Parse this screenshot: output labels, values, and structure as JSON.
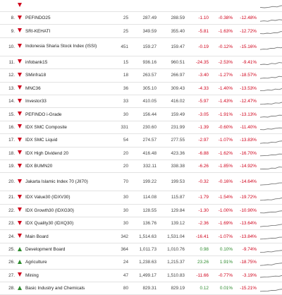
{
  "colors": {
    "negative": "#d0021b",
    "positive": "#2e8b2e",
    "sparkline": "#777777"
  },
  "rows": [
    {
      "index": "",
      "direction": "down",
      "name": "",
      "constituents": "",
      "prev": "",
      "last": "",
      "change": "",
      "change_pct": "",
      "ytd": "",
      "trend": [
        0.7,
        0.75,
        0.7,
        0.6,
        0.65,
        0.5,
        0.55,
        0.45,
        0.4,
        0.3
      ]
    },
    {
      "index": "8.",
      "direction": "down",
      "name": "PEFINDO25",
      "constituents": "25",
      "prev": "287.49",
      "last": "288.59",
      "change": "-1.10",
      "change_pct": "-0.38%",
      "ytd": "-12.48%",
      "trend": [
        0.85,
        0.8,
        0.85,
        0.7,
        0.75,
        0.65,
        0.7,
        0.4,
        0.5,
        0.2,
        0.35
      ]
    },
    {
      "index": "9.",
      "direction": "down",
      "name": "SRI-KEHATI",
      "constituents": "25",
      "prev": "349.59",
      "last": "355.40",
      "change": "-5.81",
      "change_pct": "-1.63%",
      "ytd": "-12.72%",
      "trend": [
        0.8,
        0.82,
        0.75,
        0.78,
        0.7,
        0.72,
        0.55,
        0.6,
        0.35,
        0.4,
        0.2,
        0.45
      ]
    },
    {
      "index": "10.",
      "direction": "down",
      "name": "Indonesia Sharia Stock Index (ISSI)",
      "constituents": "451",
      "prev": "159.27",
      "last": "159.47",
      "change": "-0.19",
      "change_pct": "-0.12%",
      "ytd": "-15.16%",
      "trend": [
        0.85,
        0.8,
        0.82,
        0.7,
        0.72,
        0.6,
        0.65,
        0.5,
        0.45,
        0.3,
        0.35,
        0.2
      ]
    },
    {
      "index": "11.",
      "direction": "down",
      "name": "infobank15",
      "constituents": "15",
      "prev": "936.16",
      "last": "960.51",
      "change": "-24.35",
      "change_pct": "-2.53%",
      "ytd": "-9.41%",
      "trend": [
        0.8,
        0.75,
        0.8,
        0.65,
        0.7,
        0.55,
        0.6,
        0.4,
        0.45,
        0.2,
        0.3
      ]
    },
    {
      "index": "12.",
      "direction": "down",
      "name": "SMinfra18",
      "constituents": "18",
      "prev": "263.57",
      "last": "266.97",
      "change": "-3.40",
      "change_pct": "-1.27%",
      "ytd": "-18.57%",
      "trend": [
        0.85,
        0.8,
        0.82,
        0.72,
        0.75,
        0.6,
        0.65,
        0.5,
        0.4,
        0.45,
        0.25
      ]
    },
    {
      "index": "13.",
      "direction": "down",
      "name": "MNC36",
      "constituents": "36",
      "prev": "305.10",
      "last": "309.43",
      "change": "-4.33",
      "change_pct": "-1.40%",
      "ytd": "-13.53%",
      "trend": [
        0.8,
        0.78,
        0.7,
        0.74,
        0.6,
        0.65,
        0.5,
        0.55,
        0.35,
        0.4,
        0.2
      ]
    },
    {
      "index": "14.",
      "direction": "down",
      "name": "Investor33",
      "constituents": "33",
      "prev": "410.05",
      "last": "416.02",
      "change": "-5.97",
      "change_pct": "-1.43%",
      "ytd": "-12.47%",
      "trend": [
        0.82,
        0.8,
        0.75,
        0.78,
        0.65,
        0.68,
        0.55,
        0.5,
        0.4,
        0.45,
        0.2
      ]
    },
    {
      "index": "15.",
      "direction": "down",
      "name": "PEFINDO i-Grade",
      "constituents": "30",
      "prev": "156.44",
      "last": "159.49",
      "change": "-3.05",
      "change_pct": "-1.91%",
      "ytd": "-13.13%",
      "trend": [
        0.85,
        0.8,
        0.83,
        0.7,
        0.72,
        0.6,
        0.62,
        0.45,
        0.5,
        0.3,
        0.2
      ]
    },
    {
      "index": "16.",
      "direction": "down",
      "name": "IDX SMC Composite",
      "constituents": "331",
      "prev": "230.60",
      "last": "231.99",
      "change": "-1.39",
      "change_pct": "-0.60%",
      "ytd": "-11.40%",
      "trend": [
        0.8,
        0.82,
        0.72,
        0.75,
        0.65,
        0.6,
        0.62,
        0.5,
        0.4,
        0.35,
        0.25
      ]
    },
    {
      "index": "17.",
      "direction": "down",
      "name": "IDX SMC Liquid",
      "constituents": "54",
      "prev": "274.57",
      "last": "277.55",
      "change": "-2.97",
      "change_pct": "-1.07%",
      "ytd": "-13.83%",
      "trend": [
        0.85,
        0.8,
        0.82,
        0.7,
        0.73,
        0.6,
        0.55,
        0.58,
        0.4,
        0.3,
        0.2
      ]
    },
    {
      "index": "18.",
      "direction": "down",
      "name": "IDX High Dividend 20",
      "constituents": "20",
      "prev": "416.48",
      "last": "423.36",
      "change": "-6.88",
      "change_pct": "-1.62%",
      "ytd": "-16.70%",
      "trend": [
        0.82,
        0.8,
        0.78,
        0.7,
        0.72,
        0.6,
        0.62,
        0.45,
        0.5,
        0.3,
        0.2
      ]
    },
    {
      "index": "19.",
      "direction": "down",
      "name": "IDX BUMN20",
      "constituents": "20",
      "prev": "332.11",
      "last": "338.38",
      "change": "-6.26",
      "change_pct": "-1.85%",
      "ytd": "-14.92%",
      "trend": [
        0.8,
        0.78,
        0.8,
        0.68,
        0.7,
        0.55,
        0.58,
        0.42,
        0.45,
        0.25,
        0.3
      ]
    },
    {
      "index": "20.",
      "direction": "down",
      "name": "Jakarta Islamic Index 70 (JII70)",
      "constituents": "70",
      "prev": "199.22",
      "last": "199.53",
      "change": "-0.32",
      "change_pct": "-0.16%",
      "ytd": "-14.64%",
      "trend": [
        0.85,
        0.82,
        0.8,
        0.72,
        0.7,
        0.6,
        0.58,
        0.45,
        0.4,
        0.3,
        0.2
      ]
    },
    {
      "index": "21.",
      "direction": "down",
      "name": "IDX Value30 (IDXV30)",
      "constituents": "30",
      "prev": "114.08",
      "last": "115.87",
      "change": "-1.79",
      "change_pct": "-1.54%",
      "ytd": "-19.72%",
      "trend": [
        0.82,
        0.8,
        0.75,
        0.77,
        0.65,
        0.62,
        0.5,
        0.52,
        0.35,
        0.3,
        0.2
      ]
    },
    {
      "index": "22.",
      "direction": "down",
      "name": "IDX Growth30 (IDXG30)",
      "constituents": "30",
      "prev": "128.55",
      "last": "129.84",
      "change": "-1.30",
      "change_pct": "-1.00%",
      "ytd": "-10.90%",
      "trend": [
        0.8,
        0.82,
        0.75,
        0.7,
        0.72,
        0.6,
        0.55,
        0.5,
        0.45,
        0.3,
        0.25
      ]
    },
    {
      "index": "23.",
      "direction": "down",
      "name": "IDX Quality30 (IDXQ30)",
      "constituents": "30",
      "prev": "136.76",
      "last": "139.12",
      "change": "-2.36",
      "change_pct": "-1.69%",
      "ytd": "-13.64%",
      "trend": [
        0.85,
        0.8,
        0.78,
        0.72,
        0.7,
        0.62,
        0.55,
        0.5,
        0.4,
        0.35,
        0.2
      ]
    },
    {
      "index": "24.",
      "direction": "down",
      "name": "Main Board",
      "constituents": "342",
      "prev": "1,514.63",
      "last": "1,531.04",
      "change": "-16.41",
      "change_pct": "-1.07%",
      "ytd": "-13.84%",
      "trend": [
        0.82,
        0.8,
        0.76,
        0.7,
        0.72,
        0.6,
        0.58,
        0.45,
        0.42,
        0.3,
        0.2
      ]
    },
    {
      "index": "25.",
      "direction": "up",
      "name": "Development Board",
      "constituents": "364",
      "prev": "1,011.73",
      "last": "1,010.76",
      "change": "0.98",
      "change_pct": "0.10%",
      "ytd": "-9.74%",
      "trend": [
        0.8,
        0.78,
        0.72,
        0.74,
        0.65,
        0.6,
        0.55,
        0.5,
        0.4,
        0.3,
        0.35
      ]
    },
    {
      "index": "26.",
      "direction": "up",
      "name": "Agriculture",
      "constituents": "24",
      "prev": "1,238.63",
      "last": "1,215.37",
      "change": "23.26",
      "change_pct": "1.91%",
      "ytd": "-18.75%",
      "trend": [
        0.85,
        0.82,
        0.75,
        0.78,
        0.65,
        0.6,
        0.55,
        0.45,
        0.4,
        0.3,
        0.2
      ]
    },
    {
      "index": "27.",
      "direction": "down",
      "name": "Mining",
      "constituents": "47",
      "prev": "1,499.17",
      "last": "1,510.83",
      "change": "-11.66",
      "change_pct": "-0.77%",
      "ytd": "-3.19%",
      "trend": [
        0.75,
        0.72,
        0.7,
        0.65,
        0.6,
        0.62,
        0.5,
        0.45,
        0.4,
        0.3,
        0.25
      ]
    },
    {
      "index": "28.",
      "direction": "up",
      "name": "Basic Industry and Chemicals",
      "constituents": "80",
      "prev": "829.31",
      "last": "829.19",
      "change": "0.12",
      "change_pct": "0.01%",
      "ytd": "-15.21%",
      "trend": [
        0.82,
        0.8,
        0.78,
        0.7,
        0.72,
        0.6,
        0.55,
        0.5,
        0.4,
        0.35,
        0.2
      ]
    }
  ]
}
